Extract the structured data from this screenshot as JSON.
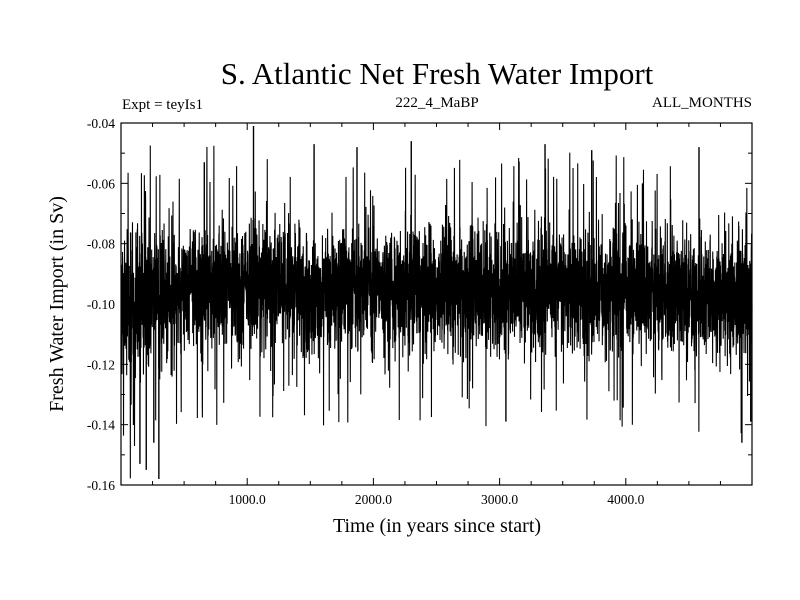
{
  "chart_data": {
    "type": "line",
    "title": "S. Atlantic Net Fresh Water Import",
    "subtitle_left": "Expt = teyIs1",
    "subtitle_center": "222_4_MaBP",
    "subtitle_right": "ALL_MONTHS",
    "xlabel": "Time (in years since start)",
    "ylabel": "Fresh Water Import (in Sv)",
    "xlim": [
      0,
      5000
    ],
    "ylim": [
      -0.16,
      -0.04
    ],
    "x_ticks": [
      1000,
      2000,
      3000,
      4000
    ],
    "x_tick_labels": [
      "1000.0",
      "2000.0",
      "3000.0",
      "4000.0"
    ],
    "y_ticks": [
      -0.04,
      -0.06,
      -0.08,
      -0.1,
      -0.12,
      -0.14,
      -0.16
    ],
    "y_tick_labels": [
      "-0.04",
      "-0.06",
      "-0.08",
      "-0.10",
      "-0.12",
      "-0.14",
      "-0.16"
    ],
    "grid": false,
    "series": [
      {
        "name": "Net Fresh Water Import",
        "color": "#000000",
        "x_start": 1,
        "x_end": 5000,
        "n_points": 5000,
        "envelope_x": [
          0,
          100,
          200,
          300,
          500,
          700,
          1000,
          1500,
          2000,
          2500,
          3000,
          3500,
          4000,
          4500,
          5000
        ],
        "envelope_mean": [
          -0.101,
          -0.1,
          -0.098,
          -0.097,
          -0.095,
          -0.094,
          -0.094,
          -0.095,
          -0.095,
          -0.095,
          -0.095,
          -0.095,
          -0.096,
          -0.097,
          -0.098
        ],
        "envelope_spread": [
          0.03,
          0.032,
          0.03,
          0.027,
          0.025,
          0.025,
          0.024,
          0.024,
          0.024,
          0.024,
          0.024,
          0.024,
          0.024,
          0.024,
          0.024
        ],
        "extremes": [
          {
            "x": 300,
            "y": -0.158
          },
          {
            "x": 200,
            "y": -0.155
          },
          {
            "x": 150,
            "y": -0.153
          },
          {
            "x": 260,
            "y": -0.146
          },
          {
            "x": 1050,
            "y": -0.041
          },
          {
            "x": 1530,
            "y": -0.047
          },
          {
            "x": 1870,
            "y": -0.048
          },
          {
            "x": 2300,
            "y": -0.046
          },
          {
            "x": 3360,
            "y": -0.047
          },
          {
            "x": 3730,
            "y": -0.049
          },
          {
            "x": 4580,
            "y": -0.048
          },
          {
            "x": 660,
            "y": -0.053
          },
          {
            "x": 4920,
            "y": -0.146
          },
          {
            "x": 4990,
            "y": -0.139
          },
          {
            "x": 3050,
            "y": -0.139
          }
        ]
      }
    ]
  }
}
